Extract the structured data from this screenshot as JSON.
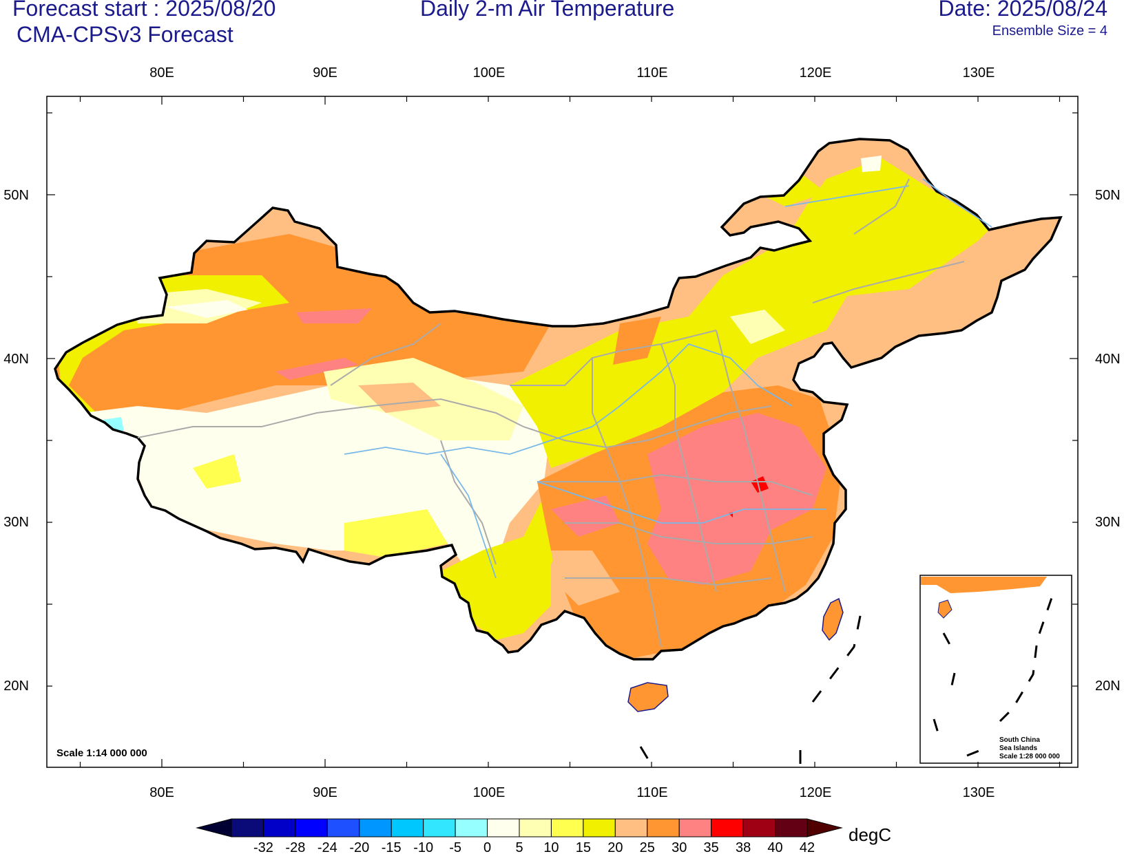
{
  "header": {
    "forecast_start": "Forecast start : 2025/08/20",
    "model": "CMA-CPSv3 Forecast",
    "title": "Daily 2-m Air Temperature",
    "date": "Date: 2025/08/24",
    "ensemble": "Ensemble Size = 4"
  },
  "axes": {
    "lon_labels": [
      "80E",
      "90E",
      "100E",
      "110E",
      "120E",
      "130E"
    ],
    "lat_labels": [
      "50N",
      "40N",
      "30N",
      "20N"
    ]
  },
  "scale_note": "Scale 1:14 000 000",
  "inset": {
    "line1": "South China",
    "line2": "Sea Islands",
    "line3": "Scale 1:28 000 000"
  },
  "colorbar": {
    "unit": "degC",
    "labels": [
      "-32",
      "-28",
      "-24",
      "-20",
      "-15",
      "-10",
      "-5",
      "0",
      "5",
      "10",
      "15",
      "20",
      "25",
      "30",
      "35",
      "38",
      "40",
      "42"
    ],
    "colors": [
      "#0a0a78",
      "#0000c8",
      "#0000ff",
      "#1e50ff",
      "#0096ff",
      "#00c8ff",
      "#32e6ff",
      "#96ffff",
      "#ffffee",
      "#ffffb4",
      "#ffff50",
      "#f0f000",
      "#ffbe82",
      "#ff9632",
      "#ff8282",
      "#ff0000",
      "#a00014",
      "#640014"
    ],
    "end_low_color": "#000032",
    "end_high_color": "#500000"
  },
  "map_colors": {
    "c0_5": "#ffffee",
    "c5_10": "#ffffb4",
    "c10_15": "#ffff50",
    "c15_20": "#f0f000",
    "c20_25": "#ffbe82",
    "c25_30": "#ff9632",
    "c30_35": "#ff8282",
    "c35_38": "#ff0000",
    "cm5_0": "#96ffff"
  }
}
